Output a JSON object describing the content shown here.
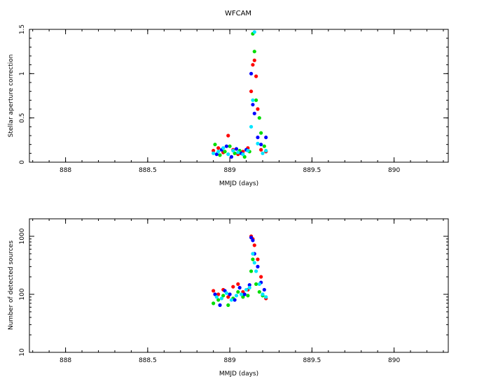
{
  "title": "WFCAM",
  "colors": {
    "red": "#ff0000",
    "green": "#00dd00",
    "blue": "#0000ff",
    "cyan": "#00e5ff",
    "axis": "#000000"
  },
  "chart_data": [
    {
      "type": "scatter",
      "title": "WFCAM",
      "xlabel": "MMJD (days)",
      "ylabel": "Stellar aperture correction",
      "xlim": [
        887.78,
        890.33
      ],
      "ylim": [
        0,
        1.5
      ],
      "yscale": "linear",
      "xticks": [
        {
          "v": 888,
          "label": "888"
        },
        {
          "v": 888.5,
          "label": "888.5"
        },
        {
          "v": 889,
          "label": "889"
        },
        {
          "v": 889.5,
          "label": "889.5"
        },
        {
          "v": 890,
          "label": "890"
        }
      ],
      "yticks": [
        {
          "v": 0,
          "label": "0"
        },
        {
          "v": 0.5,
          "label": "0.5"
        },
        {
          "v": 1,
          "label": "1"
        },
        {
          "v": 1.5,
          "label": "1.5"
        }
      ],
      "grid": false,
      "series": [
        {
          "color": "#ff0000",
          "points": [
            [
              888.9,
              0.13
            ],
            [
              888.93,
              0.16
            ],
            [
              888.96,
              0.11
            ],
            [
              888.99,
              0.3
            ],
            [
              889.02,
              0.14
            ],
            [
              889.05,
              0.09
            ],
            [
              889.08,
              0.12
            ],
            [
              889.11,
              0.16
            ],
            [
              889.13,
              0.8
            ],
            [
              889.14,
              1.1
            ],
            [
              889.15,
              1.15
            ],
            [
              889.16,
              0.97
            ],
            [
              889.17,
              0.6
            ],
            [
              889.19,
              0.14
            ],
            [
              889.22,
              0.12
            ]
          ]
        },
        {
          "color": "#00dd00",
          "points": [
            [
              888.91,
              0.2
            ],
            [
              888.94,
              0.08
            ],
            [
              888.97,
              0.12
            ],
            [
              889.0,
              0.18
            ],
            [
              889.03,
              0.1
            ],
            [
              889.06,
              0.13
            ],
            [
              889.09,
              0.06
            ],
            [
              889.12,
              0.12
            ],
            [
              889.14,
              1.45
            ],
            [
              889.15,
              1.25
            ],
            [
              889.16,
              0.7
            ],
            [
              889.18,
              0.5
            ],
            [
              889.19,
              0.33
            ],
            [
              889.21,
              0.18
            ]
          ]
        },
        {
          "color": "#0000ff",
          "points": [
            [
              888.92,
              0.09
            ],
            [
              888.95,
              0.14
            ],
            [
              888.98,
              0.18
            ],
            [
              889.01,
              0.06
            ],
            [
              889.04,
              0.15
            ],
            [
              889.07,
              0.1
            ],
            [
              889.1,
              0.14
            ],
            [
              889.13,
              1.0
            ],
            [
              889.14,
              0.65
            ],
            [
              889.15,
              0.55
            ],
            [
              889.17,
              0.28
            ],
            [
              889.19,
              0.2
            ],
            [
              889.22,
              0.28
            ]
          ]
        },
        {
          "color": "#00e5ff",
          "points": [
            [
              888.9,
              0.1
            ],
            [
              888.93,
              0.12
            ],
            [
              888.96,
              0.16
            ],
            [
              888.99,
              0.09
            ],
            [
              889.02,
              0.13
            ],
            [
              889.05,
              0.11
            ],
            [
              889.08,
              0.09
            ],
            [
              889.11,
              0.13
            ],
            [
              889.13,
              0.4
            ],
            [
              889.14,
              0.7
            ],
            [
              889.15,
              1.47
            ],
            [
              889.17,
              0.21
            ],
            [
              889.2,
              0.1
            ],
            [
              889.22,
              0.13
            ]
          ]
        }
      ]
    },
    {
      "type": "scatter",
      "xlabel": "MMJD (days)",
      "ylabel": "Number of detected sources",
      "xlim": [
        887.78,
        890.33
      ],
      "ylim": [
        10,
        2000
      ],
      "yscale": "log",
      "xticks": [
        {
          "v": 888,
          "label": "888"
        },
        {
          "v": 888.5,
          "label": "888.5"
        },
        {
          "v": 889,
          "label": "889"
        },
        {
          "v": 889.5,
          "label": "889.5"
        },
        {
          "v": 890,
          "label": "890"
        }
      ],
      "yticks": [
        {
          "v": 10,
          "label": "10"
        },
        {
          "v": 100,
          "label": "100"
        },
        {
          "v": 1000,
          "label": "1000"
        }
      ],
      "grid": false,
      "series": [
        {
          "color": "#ff0000",
          "points": [
            [
              888.9,
              115
            ],
            [
              888.93,
              100
            ],
            [
              888.96,
              120
            ],
            [
              888.99,
              90
            ],
            [
              889.02,
              135
            ],
            [
              889.05,
              150
            ],
            [
              889.08,
              110
            ],
            [
              889.11,
              120
            ],
            [
              889.13,
              1000
            ],
            [
              889.14,
              900
            ],
            [
              889.15,
              700
            ],
            [
              889.17,
              400
            ],
            [
              889.19,
              200
            ],
            [
              889.22,
              85
            ]
          ]
        },
        {
          "color": "#00dd00",
          "points": [
            [
              888.9,
              70
            ],
            [
              888.93,
              80
            ],
            [
              888.96,
              95
            ],
            [
              888.99,
              65
            ],
            [
              889.02,
              85
            ],
            [
              889.05,
              110
            ],
            [
              889.08,
              90
            ],
            [
              889.11,
              95
            ],
            [
              889.13,
              250
            ],
            [
              889.14,
              400
            ],
            [
              889.16,
              150
            ],
            [
              889.18,
              110
            ],
            [
              889.2,
              95
            ]
          ]
        },
        {
          "color": "#0000ff",
          "points": [
            [
              888.91,
              100
            ],
            [
              888.94,
              65
            ],
            [
              888.97,
              115
            ],
            [
              889.0,
              100
            ],
            [
              889.03,
              80
            ],
            [
              889.06,
              130
            ],
            [
              889.09,
              100
            ],
            [
              889.12,
              145
            ],
            [
              889.13,
              950
            ],
            [
              889.14,
              850
            ],
            [
              889.15,
              500
            ],
            [
              889.17,
              300
            ],
            [
              889.19,
              160
            ],
            [
              889.21,
              120
            ]
          ]
        },
        {
          "color": "#00e5ff",
          "points": [
            [
              888.92,
              90
            ],
            [
              888.95,
              85
            ],
            [
              888.98,
              105
            ],
            [
              889.01,
              80
            ],
            [
              889.04,
              95
            ],
            [
              889.07,
              100
            ],
            [
              889.1,
              120
            ],
            [
              889.12,
              130
            ],
            [
              889.14,
              500
            ],
            [
              889.15,
              350
            ],
            [
              889.16,
              250
            ],
            [
              889.18,
              150
            ],
            [
              889.2,
              100
            ],
            [
              889.22,
              90
            ]
          ]
        }
      ]
    }
  ]
}
